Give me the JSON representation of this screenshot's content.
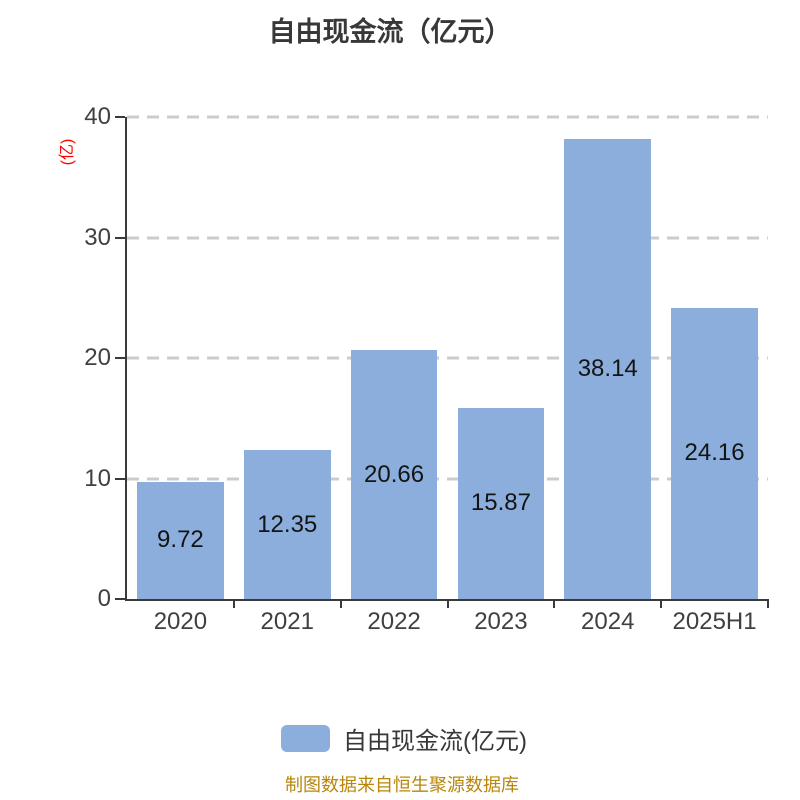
{
  "title": "自由现金流（亿元）",
  "y_axis_label": "(亿)",
  "legend": {
    "label": "自由现金流(亿元)",
    "swatch_color": "#8baedd"
  },
  "footer_note": "制图数据来自恒生聚源数据库",
  "colors": {
    "bar": "#8baedd",
    "grid": "#cccccc",
    "axis": "#3a3a3a",
    "tick_label": "#404040",
    "value_label": "#141414",
    "title": "#383838",
    "y_axis_label": "#ff0000",
    "footer": "#b8860b",
    "background": "#ffffff"
  },
  "chart_data": {
    "type": "bar",
    "title": "自由现金流（亿元）",
    "ylabel": "(亿)",
    "xlabel": "",
    "categories": [
      "2020",
      "2021",
      "2022",
      "2023",
      "2024",
      "2025H1"
    ],
    "values": [
      9.72,
      12.35,
      20.66,
      15.87,
      38.14,
      24.16
    ],
    "series_name": "自由现金流(亿元)",
    "value_labels": [
      "9.72",
      "12.35",
      "20.66",
      "15.87",
      "38.14",
      "24.16"
    ],
    "ylim": [
      0,
      40
    ],
    "yticks": [
      0,
      10,
      20,
      30,
      40
    ],
    "grid": "horizontal-dashed",
    "legend_position": "bottom",
    "bar_width_fraction": 0.81
  }
}
